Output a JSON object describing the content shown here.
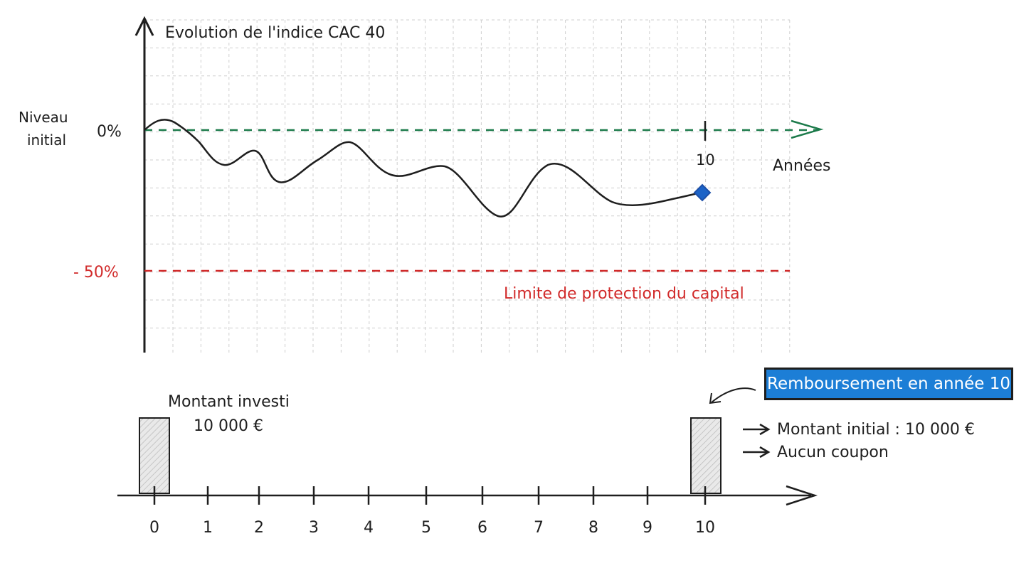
{
  "top_chart": {
    "title": "Evolution de l'indice CAC 40",
    "y_label_line1": "Niveau",
    "y_label_line2": "initial",
    "zero_label": "0%",
    "protection_label": "- 50%",
    "protection_text": "Limite de protection du capital",
    "x_axis_title": "Années",
    "x_tick_10": "10",
    "colors": {
      "zero_line": "#1b7a4a",
      "protection_line": "#d12a2a",
      "curve": "#1e1e1e",
      "end_marker": "#1c63c7"
    }
  },
  "timeline": {
    "years": [
      "0",
      "1",
      "2",
      "3",
      "4",
      "5",
      "6",
      "7",
      "8",
      "9",
      "10"
    ],
    "invest_label_line1": "Montant investi",
    "invest_label_line2": "10 000 €",
    "badge_text": "Remboursement en année 10",
    "bullet_1": "Montant initial : 10 000 €",
    "bullet_2": "Aucun coupon"
  }
}
